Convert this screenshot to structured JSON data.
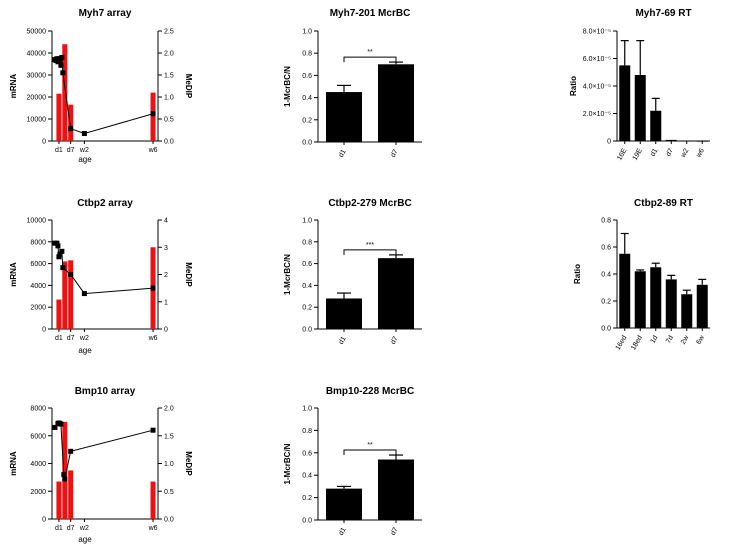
{
  "chart_data": [
    {
      "id": "myh7-array",
      "type": "bar+line",
      "title": "Myh7 array",
      "xlabel": "age",
      "ylabel": "mRNA",
      "y2label": "MeDIP",
      "ylim": [
        0,
        50000
      ],
      "yticks": [
        "0",
        "10000",
        "20000",
        "30000",
        "40000",
        "50000"
      ],
      "y2lim": [
        0,
        2.5
      ],
      "y2ticks": [
        "0.0",
        "0.5",
        "1.0",
        "1.5",
        "2.0",
        "2.5"
      ],
      "xlim": [
        -1,
        50
      ],
      "xtick_positions": [
        1,
        7,
        14,
        49
      ],
      "xtick_labels": [
        "d1",
        "d7",
        "w2",
        "w6"
      ],
      "bars": {
        "color": "#ee1111",
        "x": [
          1,
          4,
          7,
          49
        ],
        "values": [
          21500,
          44000,
          16500,
          22000
        ]
      },
      "line": {
        "x": [
          -1,
          -0.5,
          0,
          0.5,
          1,
          1.5,
          2,
          2.5,
          3,
          7,
          14,
          49
        ],
        "values": [
          1.85,
          1.83,
          1.87,
          1.8,
          1.87,
          1.85,
          1.72,
          1.9,
          1.55,
          0.28,
          0.17,
          0.62
        ]
      }
    },
    {
      "id": "myh7-mcrbc",
      "type": "bar",
      "title": "Myh7-201 McrBC",
      "ylabel": "1-McrBC/N",
      "ylim": [
        0,
        1.0
      ],
      "yticks": [
        "0.0",
        "0.2",
        "0.4",
        "0.6",
        "0.8",
        "1.0"
      ],
      "categories": [
        "d1",
        "d7"
      ],
      "values": [
        0.45,
        0.7
      ],
      "errors": [
        0.06,
        0.02
      ],
      "significance": "**"
    },
    {
      "id": "myh7-rt",
      "type": "bar",
      "title": "Myh7-69 RT",
      "ylabel": "Ratio",
      "ylim": [
        0,
        8e-05
      ],
      "yticks": [
        "0",
        "2.0×10⁻⁵",
        "4.0×10⁻⁵",
        "6.0×10⁻⁵",
        "8.0×10⁻⁵"
      ],
      "categories": [
        "16E",
        "19E",
        "d1",
        "d7",
        "w2",
        "w6"
      ],
      "values": [
        5.5e-05,
        4.8e-05,
        2.2e-05,
        8e-07,
        2e-07,
        1e-07
      ],
      "errors": [
        1.8e-05,
        2.5e-05,
        9e-06,
        0,
        0,
        0
      ]
    },
    {
      "id": "ctbp2-array",
      "type": "bar+line",
      "title": "Ctbp2 array",
      "xlabel": "age",
      "ylabel": "mRNA",
      "y2label": "MeDIP",
      "ylim": [
        0,
        10000
      ],
      "yticks": [
        "0",
        "2000",
        "4000",
        "6000",
        "8000",
        "10000"
      ],
      "y2lim": [
        0,
        4
      ],
      "y2ticks": [
        "0",
        "1",
        "2",
        "3",
        "4"
      ],
      "xlim": [
        -1,
        50
      ],
      "xtick_positions": [
        1,
        7,
        14,
        49
      ],
      "xtick_labels": [
        "d1",
        "d7",
        "w2",
        "w6"
      ],
      "bars": {
        "color": "#ee1111",
        "x": [
          1,
          4,
          7,
          49
        ],
        "values": [
          2700,
          6200,
          6300,
          7500
        ]
      },
      "line": {
        "x": [
          -1,
          0,
          0.5,
          1,
          1.5,
          2.5,
          3,
          7,
          14,
          49
        ],
        "values": [
          3.15,
          3.15,
          3.05,
          2.65,
          2.75,
          2.85,
          2.25,
          2.0,
          1.3,
          1.5
        ]
      }
    },
    {
      "id": "ctbp2-mcrbc",
      "type": "bar",
      "title": "Ctbp2-279 McrBC",
      "ylabel": "1-McrBC/N",
      "ylim": [
        0,
        1.0
      ],
      "yticks": [
        "0.0",
        "0.2",
        "0.4",
        "0.6",
        "0.8",
        "1.0"
      ],
      "categories": [
        "d1",
        "d7"
      ],
      "values": [
        0.28,
        0.65
      ],
      "errors": [
        0.05,
        0.03
      ],
      "significance": "***"
    },
    {
      "id": "ctbp2-rt",
      "type": "bar",
      "title": "Ctbp2-89 RT",
      "ylabel": "Ratio",
      "ylim": [
        0,
        0.8
      ],
      "yticks": [
        "0.0",
        "0.2",
        "0.4",
        "0.6",
        "0.8"
      ],
      "categories": [
        "16ed",
        "18ed",
        "1d",
        "7d",
        "2w",
        "6w"
      ],
      "values": [
        0.55,
        0.42,
        0.45,
        0.36,
        0.25,
        0.32
      ],
      "errors": [
        0.15,
        0.01,
        0.03,
        0.03,
        0.03,
        0.04
      ]
    },
    {
      "id": "bmp10-array",
      "type": "bar+line",
      "title": "Bmp10 array",
      "xlabel": "age",
      "ylabel": "mRNA",
      "y2label": "MeDIP",
      "ylim": [
        0,
        8000
      ],
      "yticks": [
        "0",
        "2000",
        "4000",
        "6000",
        "8000"
      ],
      "y2lim": [
        0,
        2.0
      ],
      "y2ticks": [
        "0.0",
        "0.5",
        "1.0",
        "1.5",
        "2.0"
      ],
      "xlim": [
        -1,
        50
      ],
      "xtick_positions": [
        1,
        7,
        14,
        49
      ],
      "xtick_labels": [
        "d1",
        "d7",
        "w2",
        "w6"
      ],
      "bars": {
        "color": "#ee1111",
        "x": [
          1,
          4,
          7,
          49
        ],
        "values": [
          2700,
          7000,
          3500,
          2700
        ]
      },
      "line": {
        "x": [
          -1,
          0.5,
          1,
          1.5,
          2,
          3.5,
          4,
          7,
          49
        ],
        "values": [
          1.65,
          1.72,
          1.73,
          1.72,
          1.71,
          0.8,
          0.72,
          1.22,
          1.6
        ]
      }
    },
    {
      "id": "bmp10-mcrbc",
      "type": "bar",
      "title": "Bmp10-228 McrBC",
      "ylabel": "1-McrBC/N",
      "ylim": [
        0,
        1.0
      ],
      "yticks": [
        "0.0",
        "0.2",
        "0.4",
        "0.6",
        "0.8",
        "1.0"
      ],
      "categories": [
        "d1",
        "d7"
      ],
      "values": [
        0.28,
        0.54
      ],
      "errors": [
        0.02,
        0.04
      ],
      "significance": "**"
    }
  ]
}
